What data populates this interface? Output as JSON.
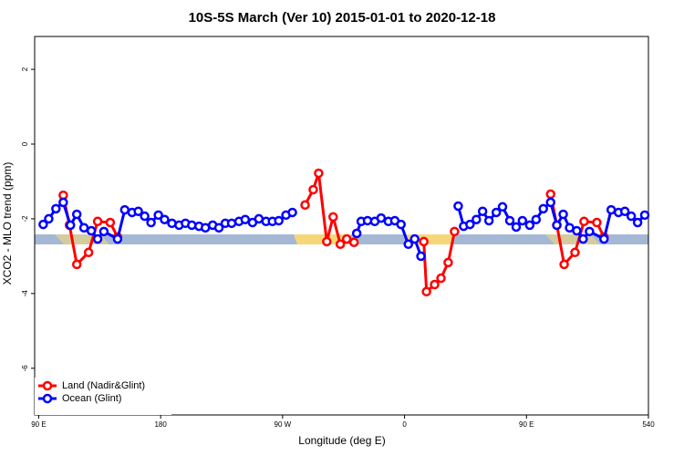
{
  "chart_data": {
    "type": "line",
    "title": "10S-5S March (Ver 10)   2015-01-01 to 2020-12-18",
    "x_label": "Longitude (deg E)",
    "y_label": "XCO2 - MLO trend (ppm)",
    "xlim": [
      87,
      540
    ],
    "ylim": [
      -7.25,
      2.88
    ],
    "xticks": [
      {
        "value": 90,
        "label": "90 E"
      },
      180,
      {
        "value": 270,
        "label": "90 W"
      },
      {
        "value": 360,
        "label": "0"
      },
      {
        "value": 450,
        "label": "90 E"
      },
      540
    ],
    "yticks": [
      -6,
      -4,
      -2,
      0,
      2
    ],
    "legend": "bottom-left",
    "series": [
      {
        "name": "Land (Nadir&Glint)",
        "color": "#ff0000",
        "x": [
          108.1,
          112.7,
          118.1,
          126.8,
          133.5,
          142.8,
          148.2,
          null,
          286.6,
          292.6,
          296.6,
          302.6,
          307.3,
          312.6,
          317.3,
          322.7,
          null,
          374.2,
          376.2,
          382.2,
          386.9,
          392.2,
          396.9,
          null,
          467.8,
          472.4,
          477.8,
          485.8,
          492.5,
          501.9,
          507.2
        ],
        "values": [
          -1.37,
          -2.17,
          -3.22,
          -2.9,
          -2.07,
          -2.1,
          -2.49,
          null,
          -1.63,
          -1.22,
          -0.78,
          -2.61,
          -1.95,
          -2.68,
          -2.54,
          -2.63,
          null,
          -2.61,
          -3.95,
          -3.76,
          -3.59,
          -3.17,
          -2.34,
          null,
          -1.34,
          -2.17,
          -3.22,
          -2.9,
          -2.07,
          -2.1,
          -2.49
        ]
      },
      {
        "name": "Ocean (Glint)",
        "color": "#0000ff",
        "x": [
          93.3,
          97.4,
          102.7,
          108.1,
          113.4,
          118.1,
          123.4,
          128.8,
          133.5,
          138.1,
          148.2,
          153.5,
          158.9,
          163.5,
          168.2,
          172.9,
          178.3,
          182.9,
          188.3,
          193.6,
          198.3,
          203.0,
          208.3,
          213.0,
          218.4,
          223.0,
          227.7,
          232.4,
          237.8,
          242.4,
          247.8,
          252.5,
          257.8,
          262.5,
          267.2,
          272.5,
          277.2,
          null,
          324.7,
          328.0,
          332.7,
          338.0,
          342.7,
          348.1,
          352.8,
          357.4,
          362.8,
          367.5,
          372.1,
          null,
          399.6,
          403.6,
          408.3,
          413.0,
          417.6,
          422.3,
          427.7,
          432.3,
          437.7,
          442.4,
          447.0,
          452.4,
          457.1,
          462.4,
          467.8,
          472.4,
          477.1,
          481.8,
          487.1,
          491.8,
          496.5,
          507.2,
          512.5,
          517.9,
          522.6,
          527.3,
          532.0,
          537.3
        ],
        "values": [
          -2.15,
          -2.0,
          -1.73,
          -1.56,
          -2.17,
          -1.88,
          -2.24,
          -2.32,
          -2.54,
          -2.34,
          -2.54,
          -1.76,
          -1.83,
          -1.8,
          -1.93,
          -2.1,
          -1.9,
          -2.02,
          -2.12,
          -2.17,
          -2.12,
          -2.17,
          -2.2,
          -2.24,
          -2.17,
          -2.24,
          -2.12,
          -2.12,
          -2.07,
          -2.02,
          -2.1,
          -2.0,
          -2.07,
          -2.07,
          -2.05,
          -1.9,
          -1.83,
          null,
          -2.39,
          -2.07,
          -2.05,
          -2.07,
          -1.98,
          -2.07,
          -2.05,
          -2.15,
          -2.68,
          -2.54,
          -3.0,
          null,
          -1.66,
          -2.2,
          -2.15,
          -2.02,
          -1.8,
          -2.05,
          -1.83,
          -1.68,
          -2.05,
          -2.22,
          -2.05,
          -2.17,
          -2.02,
          -1.73,
          -1.56,
          -2.17,
          -1.88,
          -2.24,
          -2.32,
          -2.54,
          -2.34,
          -2.54,
          -1.76,
          -1.83,
          -1.8,
          -1.93,
          -2.1,
          -1.9
        ]
      }
    ]
  }
}
